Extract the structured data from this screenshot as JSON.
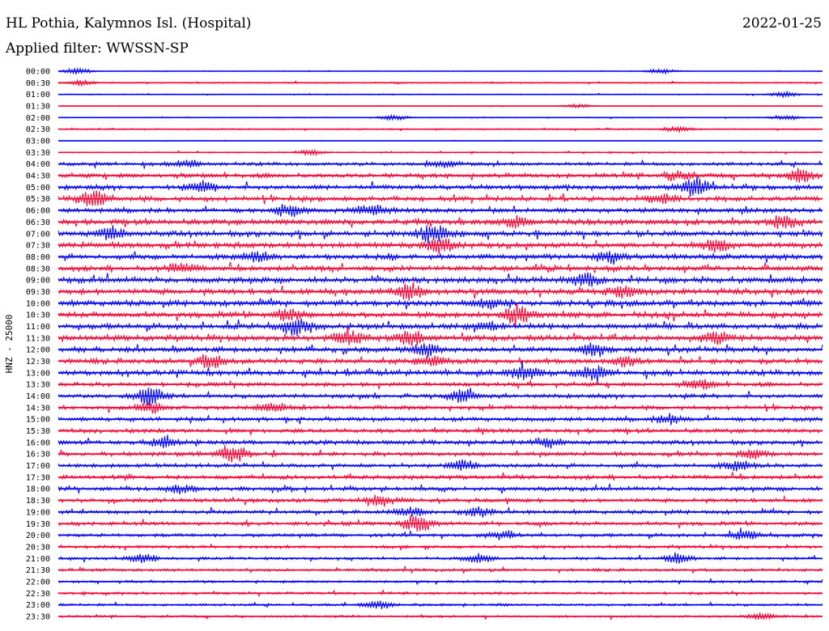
{
  "header": {
    "station": "HL Pothia, Kalymnos Isl. (Hospital)",
    "date": "2022-01-25",
    "filter": "Applied filter: WWSSN-SP"
  },
  "chart_data": {
    "type": "line",
    "title": "HL Pothia, Kalymnos Isl. (Hospital)",
    "subtitle": "Applied filter: WWSSN-SP",
    "ylabel": "HNZ - 25000",
    "xlabel": "",
    "grid": false,
    "colors": [
      "#0000ff",
      "#ff0033"
    ],
    "row_labels": [
      "00:00",
      "00:30",
      "01:00",
      "01:30",
      "02:00",
      "02:30",
      "03:00",
      "03:30",
      "04:00",
      "04:30",
      "05:00",
      "05:30",
      "06:00",
      "06:30",
      "07:00",
      "07:30",
      "08:00",
      "08:30",
      "09:00",
      "09:30",
      "10:00",
      "10:30",
      "11:00",
      "11:30",
      "12:00",
      "12:30",
      "13:00",
      "13:30",
      "14:00",
      "14:30",
      "15:00",
      "15:30",
      "16:00",
      "16:30",
      "17:00",
      "17:30",
      "18:00",
      "18:30",
      "19:00",
      "19:30",
      "20:00",
      "20:30",
      "21:00",
      "21:30",
      "22:00",
      "22:30",
      "23:00",
      "23:30"
    ],
    "noise_level": [
      0.4,
      0.9,
      0.6,
      0.4,
      0.6,
      0.9,
      0.3,
      0.9,
      2.2,
      2.8,
      3.0,
      3.2,
      3.0,
      3.4,
      3.6,
      3.6,
      3.3,
      3.2,
      3.6,
      3.6,
      3.6,
      3.6,
      3.6,
      3.6,
      3.3,
      3.2,
      3.4,
      2.6,
      2.6,
      2.6,
      2.8,
      2.6,
      2.8,
      2.6,
      2.6,
      2.6,
      2.6,
      2.5,
      2.4,
      2.4,
      2.2,
      2.0,
      1.8,
      1.8,
      1.6,
      1.6,
      1.6,
      1.4
    ],
    "events": [
      {
        "row": 0,
        "pos": 0.025,
        "amp": 4
      },
      {
        "row": 0,
        "pos": 0.79,
        "amp": 3
      },
      {
        "row": 1,
        "pos": 0.03,
        "amp": 3
      },
      {
        "row": 2,
        "pos": 0.95,
        "amp": 3
      },
      {
        "row": 3,
        "pos": 0.68,
        "amp": 2
      },
      {
        "row": 4,
        "pos": 0.44,
        "amp": 3
      },
      {
        "row": 4,
        "pos": 0.95,
        "amp": 3
      },
      {
        "row": 5,
        "pos": 0.81,
        "amp": 3
      },
      {
        "row": 7,
        "pos": 0.33,
        "amp": 3
      },
      {
        "row": 8,
        "pos": 0.17,
        "amp": 4
      },
      {
        "row": 8,
        "pos": 0.5,
        "amp": 4
      },
      {
        "row": 9,
        "pos": 0.97,
        "amp": 8
      },
      {
        "row": 9,
        "pos": 0.81,
        "amp": 5
      },
      {
        "row": 10,
        "pos": 0.835,
        "amp": 12
      },
      {
        "row": 10,
        "pos": 0.19,
        "amp": 6
      },
      {
        "row": 11,
        "pos": 0.045,
        "amp": 10
      },
      {
        "row": 11,
        "pos": 0.79,
        "amp": 5
      },
      {
        "row": 12,
        "pos": 0.3,
        "amp": 7
      },
      {
        "row": 12,
        "pos": 0.41,
        "amp": 7
      },
      {
        "row": 13,
        "pos": 0.6,
        "amp": 6
      },
      {
        "row": 13,
        "pos": 0.95,
        "amp": 7
      },
      {
        "row": 14,
        "pos": 0.49,
        "amp": 10
      },
      {
        "row": 14,
        "pos": 0.07,
        "amp": 7
      },
      {
        "row": 15,
        "pos": 0.5,
        "amp": 8
      },
      {
        "row": 15,
        "pos": 0.86,
        "amp": 7
      },
      {
        "row": 16,
        "pos": 0.72,
        "amp": 6
      },
      {
        "row": 16,
        "pos": 0.26,
        "amp": 5
      },
      {
        "row": 17,
        "pos": 0.16,
        "amp": 6
      },
      {
        "row": 18,
        "pos": 0.69,
        "amp": 7
      },
      {
        "row": 19,
        "pos": 0.46,
        "amp": 9
      },
      {
        "row": 19,
        "pos": 0.74,
        "amp": 6
      },
      {
        "row": 20,
        "pos": 0.56,
        "amp": 6
      },
      {
        "row": 21,
        "pos": 0.6,
        "amp": 11
      },
      {
        "row": 21,
        "pos": 0.3,
        "amp": 6
      },
      {
        "row": 22,
        "pos": 0.31,
        "amp": 9
      },
      {
        "row": 22,
        "pos": 0.56,
        "amp": 5
      },
      {
        "row": 23,
        "pos": 0.38,
        "amp": 8
      },
      {
        "row": 23,
        "pos": 0.46,
        "amp": 8
      },
      {
        "row": 23,
        "pos": 0.86,
        "amp": 6
      },
      {
        "row": 24,
        "pos": 0.48,
        "amp": 7
      },
      {
        "row": 24,
        "pos": 0.7,
        "amp": 7
      },
      {
        "row": 25,
        "pos": 0.2,
        "amp": 8
      },
      {
        "row": 25,
        "pos": 0.49,
        "amp": 6
      },
      {
        "row": 25,
        "pos": 0.74,
        "amp": 6
      },
      {
        "row": 26,
        "pos": 0.61,
        "amp": 8
      },
      {
        "row": 26,
        "pos": 0.7,
        "amp": 7
      },
      {
        "row": 27,
        "pos": 0.84,
        "amp": 5
      },
      {
        "row": 28,
        "pos": 0.12,
        "amp": 11
      },
      {
        "row": 28,
        "pos": 0.53,
        "amp": 7
      },
      {
        "row": 29,
        "pos": 0.12,
        "amp": 6
      },
      {
        "row": 29,
        "pos": 0.28,
        "amp": 5
      },
      {
        "row": 30,
        "pos": 0.8,
        "amp": 5
      },
      {
        "row": 32,
        "pos": 0.14,
        "amp": 5
      },
      {
        "row": 32,
        "pos": 0.64,
        "amp": 5
      },
      {
        "row": 33,
        "pos": 0.23,
        "amp": 10
      },
      {
        "row": 33,
        "pos": 0.91,
        "amp": 5
      },
      {
        "row": 34,
        "pos": 0.53,
        "amp": 6
      },
      {
        "row": 34,
        "pos": 0.89,
        "amp": 5
      },
      {
        "row": 36,
        "pos": 0.16,
        "amp": 5
      },
      {
        "row": 37,
        "pos": 0.42,
        "amp": 6
      },
      {
        "row": 38,
        "pos": 0.46,
        "amp": 5
      },
      {
        "row": 38,
        "pos": 0.55,
        "amp": 5
      },
      {
        "row": 39,
        "pos": 0.47,
        "amp": 10
      },
      {
        "row": 40,
        "pos": 0.58,
        "amp": 5
      },
      {
        "row": 40,
        "pos": 0.9,
        "amp": 5
      },
      {
        "row": 42,
        "pos": 0.11,
        "amp": 5
      },
      {
        "row": 42,
        "pos": 0.55,
        "amp": 5
      },
      {
        "row": 42,
        "pos": 0.81,
        "amp": 5
      },
      {
        "row": 46,
        "pos": 0.42,
        "amp": 5
      },
      {
        "row": 47,
        "pos": 0.92,
        "amp": 4
      }
    ]
  }
}
